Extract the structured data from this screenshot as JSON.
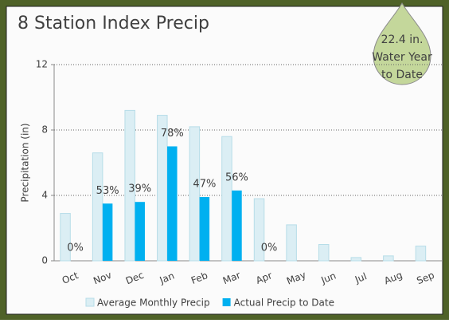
{
  "chart_data": {
    "type": "bar",
    "title": "8 Station Index Precip",
    "y_label": "Precipitation (in)",
    "callout": [
      "22.4 in.",
      "Water Year",
      "to Date"
    ],
    "categories": [
      "Oct",
      "Nov",
      "Dec",
      "Jan",
      "Feb",
      "Mar",
      "Apr",
      "May",
      "Jun",
      "Jul",
      "Aug",
      "Sep"
    ],
    "series": [
      {
        "name": "Average Monthly Precip",
        "color": "#dbeef4",
        "values": [
          2.9,
          6.6,
          9.2,
          8.9,
          8.2,
          7.6,
          3.8,
          2.2,
          1.0,
          0.2,
          0.3,
          0.9
        ]
      },
      {
        "name": "Actual Precip to Date",
        "color": "#00b0f0",
        "values": [
          0,
          3.5,
          3.6,
          7.0,
          3.9,
          4.3,
          0,
          null,
          null,
          null,
          null,
          null
        ]
      }
    ],
    "percent_of_average": [
      "0%",
      "53%",
      "39%",
      "78%",
      "47%",
      "56%",
      "0%",
      null,
      null,
      null,
      null,
      null
    ],
    "ylim": [
      0,
      12
    ],
    "yticks": [
      0,
      4,
      8,
      12
    ],
    "grid": true,
    "legend": "bottom"
  }
}
